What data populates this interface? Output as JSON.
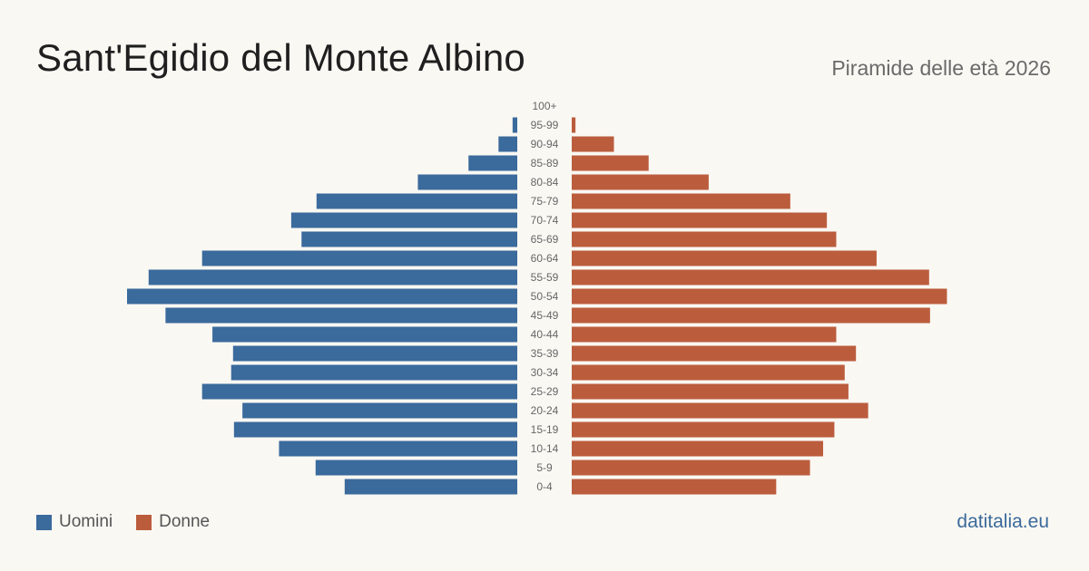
{
  "header": {
    "title": "Sant'Egidio del Monte Albino",
    "subtitle": "Piramide delle età 2026"
  },
  "legend": {
    "men_label": "Uomini",
    "women_label": "Donne"
  },
  "source": "datitalia.eu",
  "colors": {
    "men": "#3b6a9c",
    "women": "#bb5d3d",
    "source_text": "#3b6a9c"
  },
  "chart_data": {
    "type": "bar",
    "orientation": "horizontal-pyramid",
    "categories": [
      "100+",
      "95-99",
      "90-94",
      "85-89",
      "80-84",
      "75-79",
      "70-74",
      "65-69",
      "60-64",
      "55-59",
      "50-54",
      "45-49",
      "40-44",
      "35-39",
      "30-34",
      "25-29",
      "20-24",
      "15-19",
      "10-14",
      "5-9",
      "0-4"
    ],
    "series": [
      {
        "name": "Uomini",
        "values": [
          0,
          5,
          20,
          52,
          106,
          214,
          241,
          230,
          336,
          393,
          416,
          375,
          325,
          303,
          305,
          336,
          293,
          302,
          254,
          215,
          184
        ]
      },
      {
        "name": "Donne",
        "values": [
          0,
          4,
          45,
          82,
          146,
          233,
          272,
          282,
          325,
          381,
          400,
          382,
          282,
          303,
          291,
          295,
          316,
          280,
          268,
          254,
          218
        ]
      }
    ]
  }
}
